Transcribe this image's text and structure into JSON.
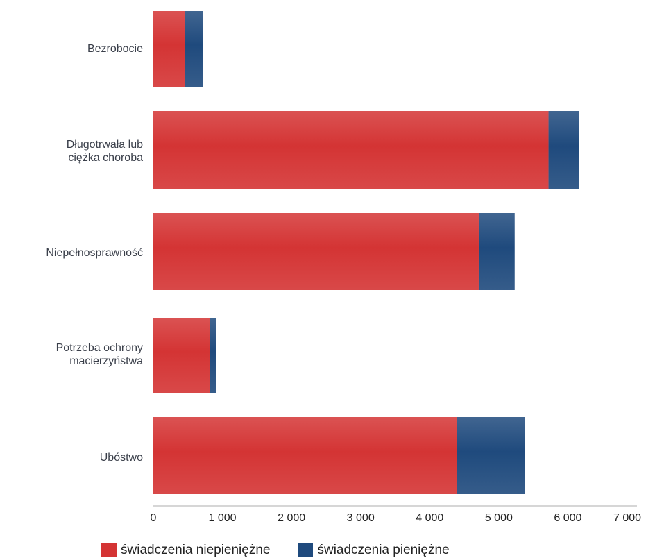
{
  "colors": {
    "niepieniezne": "#d43434",
    "pieniezne": "#1f4a7d",
    "axis": "#c9c9c9"
  },
  "chart_data": {
    "type": "bar",
    "orientation": "horizontal",
    "stacked": true,
    "categories": [
      "Bezrobocie",
      "Długotrwała lub\nciężka choroba",
      "Niepełnosprawność",
      "Potrzeba ochrony\nmacierzyństwa",
      "Ubóstwo"
    ],
    "series": [
      {
        "name": "świadczenia niepieniężne",
        "color": "#d43434",
        "values": [
          460,
          5720,
          4710,
          820,
          4390
        ]
      },
      {
        "name": "świadczenia pieniężne",
        "color": "#1f4a7d",
        "values": [
          260,
          440,
          520,
          90,
          990
        ]
      }
    ],
    "xlim": [
      0,
      7000
    ],
    "xticks": [
      0,
      1000,
      2000,
      3000,
      4000,
      5000,
      6000,
      7000
    ],
    "xtick_labels": [
      "0",
      "1 000",
      "2 000",
      "3 000",
      "4 000",
      "5 000",
      "6 000",
      "7 000"
    ],
    "legend_position": "bottom-left",
    "grid": false
  }
}
